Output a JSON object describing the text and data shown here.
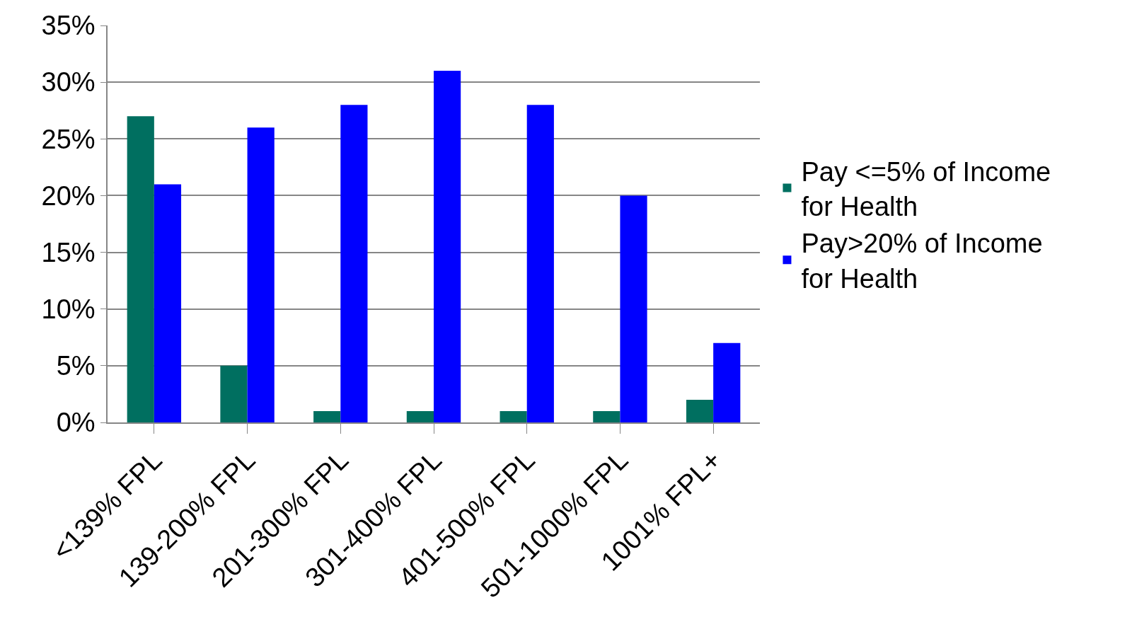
{
  "chart_data": {
    "type": "bar",
    "categories": [
      "<139% FPL",
      "139-200% FPL",
      "201-300% FPL",
      "301-400% FPL",
      "401-500% FPL",
      "501-1000% FPL",
      "1001% FPL+"
    ],
    "series": [
      {
        "name": "Pay <=5% of Income for Health",
        "color": "#006f60",
        "values": [
          27,
          5,
          1,
          1,
          1,
          1,
          2
        ]
      },
      {
        "name": "Pay>20% of Income for Health",
        "color": "#0000ff",
        "values": [
          21,
          26,
          28,
          31,
          28,
          20,
          7
        ]
      }
    ],
    "ylim": [
      0,
      35
    ],
    "yticks": [
      {
        "value": 0,
        "label": "0%"
      },
      {
        "value": 5,
        "label": "5%"
      },
      {
        "value": 10,
        "label": "10%"
      },
      {
        "value": 15,
        "label": "15%"
      },
      {
        "value": 20,
        "label": "20%"
      },
      {
        "value": 25,
        "label": "25%"
      },
      {
        "value": 30,
        "label": "30%"
      },
      {
        "value": 35,
        "label": "35%"
      }
    ],
    "grid": "y",
    "legend": "right"
  }
}
